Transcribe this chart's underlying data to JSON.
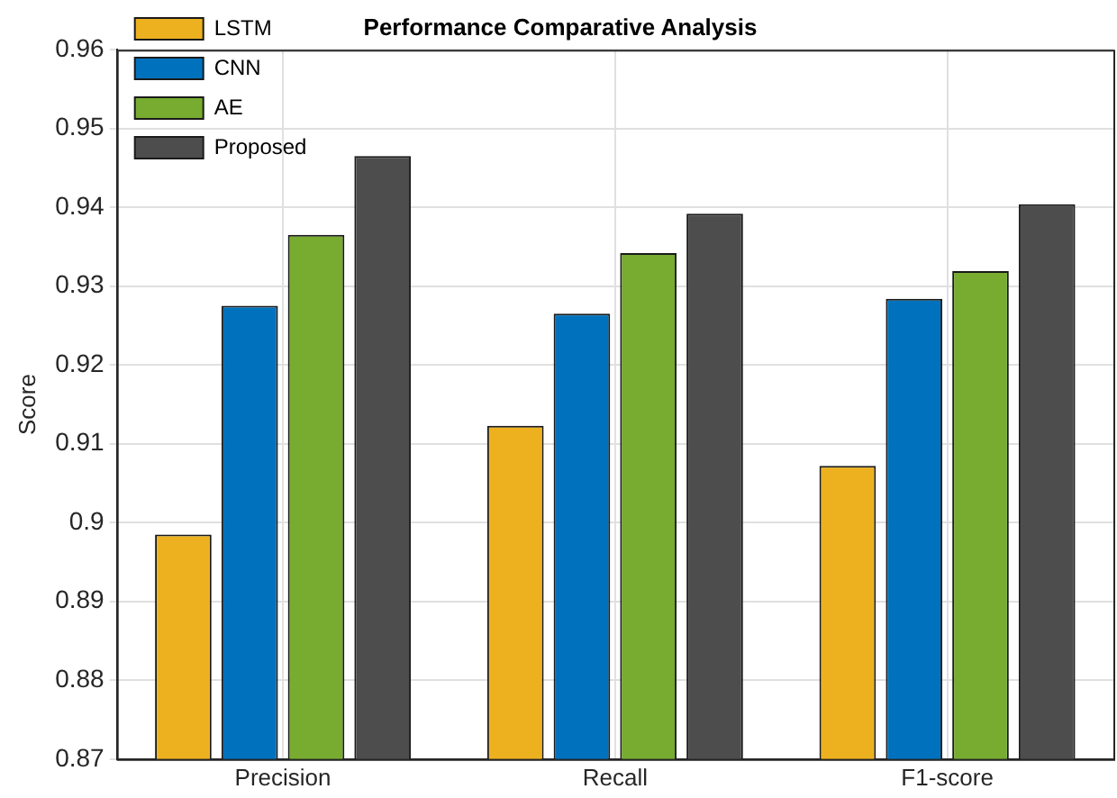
{
  "chart_data": {
    "type": "bar",
    "title": "Performance Comparative Analysis",
    "ylabel": "Score",
    "categories": [
      "Precision",
      "Recall",
      "F1-score"
    ],
    "series": [
      {
        "name": "LSTM",
        "color": "#edb120",
        "values": [
          0.8985,
          0.9123,
          0.9072
        ]
      },
      {
        "name": "CNN",
        "color": "#0072bd",
        "values": [
          0.9275,
          0.9265,
          0.9284
        ]
      },
      {
        "name": "AE",
        "color": "#77ac30",
        "values": [
          0.9365,
          0.9342,
          0.9319
        ]
      },
      {
        "name": "Proposed",
        "color": "#4d4d4d",
        "values": [
          0.9465,
          0.9392,
          0.9404
        ]
      }
    ],
    "ylim": [
      0.87,
      0.96
    ],
    "yticks": [
      0.87,
      0.88,
      0.89,
      0.9,
      0.91,
      0.92,
      0.93,
      0.94,
      0.95,
      0.96
    ],
    "grid": true,
    "legend": "top left"
  }
}
